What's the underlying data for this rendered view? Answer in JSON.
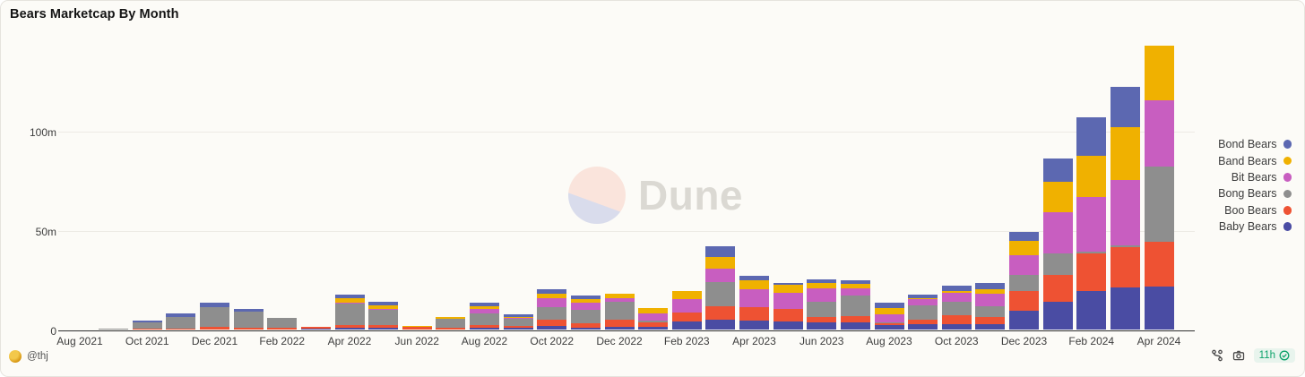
{
  "title": "Bears Marketcap By Month",
  "watermark": {
    "brand": "Dune"
  },
  "footer": {
    "author": "@thj",
    "age_badge": "11h",
    "icons": [
      "fork",
      "camera"
    ],
    "badge_icon": "check-circle"
  },
  "chart_data": {
    "type": "bar",
    "stacked": true,
    "title": "Bears Marketcap By Month",
    "value_unit": "m (millions)",
    "ylim": [
      0,
      150
    ],
    "grid": "horizontal",
    "legend_position": "right",
    "y_ticks": [
      {
        "label": "0",
        "value": 0
      },
      {
        "label": "50m",
        "value": 50
      },
      {
        "label": "100m",
        "value": 100
      }
    ],
    "categories": [
      "Aug 2021",
      "Sep 2021",
      "Oct 2021",
      "Nov 2021",
      "Dec 2021",
      "Jan 2022",
      "Feb 2022",
      "Mar 2022",
      "Apr 2022",
      "May 2022",
      "Jun 2022",
      "Jul 2022",
      "Aug 2022",
      "Sep 2022",
      "Oct 2022",
      "Nov 2022",
      "Dec 2022",
      "Jan 2023",
      "Feb 2023",
      "Mar 2023",
      "Apr 2023",
      "May 2023",
      "Jun 2023",
      "Jul 2023",
      "Aug 2023",
      "Sep 2023",
      "Oct 2023",
      "Nov 2023",
      "Dec 2023",
      "Jan 2024",
      "Feb 2024",
      "Mar 2024",
      "Apr 2024"
    ],
    "x_tick_labels": [
      "Aug 2021",
      "Oct 2021",
      "Dec 2021",
      "Feb 2022",
      "Apr 2022",
      "Jun 2022",
      "Aug 2022",
      "Oct 2022",
      "Dec 2022",
      "Feb 2023",
      "Apr 2023",
      "Jun 2023",
      "Aug 2023",
      "Oct 2023",
      "Dec 2023",
      "Feb 2024",
      "Apr 2024"
    ],
    "series_bottom_to_top": [
      {
        "name": "Baby Bears",
        "color": "#4A4CA3",
        "values": [
          0,
          0,
          0,
          0,
          0,
          0,
          0,
          0.1,
          0.9,
          0.7,
          0,
          0,
          0.7,
          0.5,
          1.8,
          0.9,
          1.3,
          1.3,
          4.0,
          4.9,
          4.5,
          4.0,
          3.6,
          3.6,
          2.2,
          2.7,
          2.7,
          2.7,
          9.4,
          13.9,
          19.3,
          21.0,
          21.5
        ]
      },
      {
        "name": "Boo Bears",
        "color": "#EE5233",
        "values": [
          0,
          0,
          0.4,
          0.4,
          1.2,
          0.9,
          0.5,
          0.9,
          1.3,
          1.3,
          1.1,
          0.7,
          1.3,
          0.9,
          3.1,
          2.2,
          3.6,
          2.2,
          4.5,
          6.7,
          6.7,
          6.3,
          2.7,
          3.1,
          0.9,
          2.2,
          4.5,
          3.6,
          9.9,
          13.5,
          18.8,
          20.2,
          22.4
        ]
      },
      {
        "name": "Bong Bears",
        "color": "#8E8E8E",
        "values": [
          0,
          0.4,
          2.9,
          5.8,
          10.0,
          8.1,
          5.0,
          0.1,
          10.8,
          7.9,
          0.2,
          4.5,
          5.8,
          4.0,
          6.3,
          6.7,
          9.0,
          0.9,
          0,
          12.1,
          0,
          0,
          7.6,
          10.3,
          0.4,
          7.2,
          6.7,
          5.4,
          8.0,
          10.8,
          1.0,
          1.0,
          37.7
        ]
      },
      {
        "name": "Bit Bears",
        "color": "#C85EC0",
        "values": [
          0,
          0,
          0,
          0,
          0,
          0,
          0,
          0,
          0.4,
          0.4,
          0,
          0,
          2.2,
          0.4,
          4.5,
          3.6,
          1.6,
          3.6,
          6.7,
          6.7,
          9.0,
          8.1,
          6.7,
          3.6,
          4.0,
          3.1,
          4.5,
          6.3,
          9.9,
          20.6,
          27.4,
          32.7,
          33.6
        ]
      },
      {
        "name": "Band Bears",
        "color": "#F0B100",
        "values": [
          0,
          0,
          0,
          0,
          0,
          0,
          0,
          0,
          2.0,
          1.8,
          0.5,
          1.1,
          1.3,
          0.4,
          2.2,
          1.8,
          2.4,
          2.8,
          4.1,
          5.8,
          4.5,
          4.0,
          2.7,
          2.2,
          3.1,
          0.5,
          0.9,
          2.2,
          7.2,
          15.2,
          20.6,
          26.9,
          27.4
        ]
      },
      {
        "name": "Bond Bears",
        "color": "#5C68B1",
        "values": [
          0,
          0,
          1.2,
          1.8,
          2.3,
          1.3,
          0.3,
          0,
          1.8,
          1.6,
          0,
          0,
          1.8,
          1.4,
          2.2,
          1.8,
          0,
          0,
          0,
          5.4,
          2.2,
          0.9,
          1.8,
          1.8,
          2.9,
          1.8,
          2.7,
          2.8,
          4.5,
          11.7,
          19.3,
          20.2,
          0
        ]
      }
    ]
  }
}
